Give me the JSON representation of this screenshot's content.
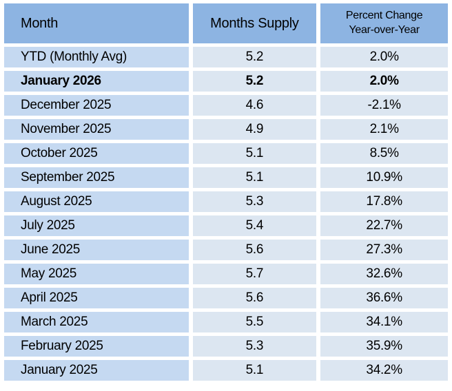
{
  "colors": {
    "header_bg": "#8DB4E2",
    "month_col_bg": "#C5D9F1",
    "value_col_bg": "#DCE6F1",
    "text": "#000000",
    "background": "#FFFFFF"
  },
  "table": {
    "headers": {
      "month": "Month",
      "supply": "Months Supply",
      "change_line1": "Percent Change",
      "change_line2": "Year-over-Year"
    },
    "rows": [
      {
        "month": "YTD (Monthly Avg)",
        "supply": "5.2",
        "change": "2.0%",
        "bold": false
      },
      {
        "month": "January 2026",
        "supply": "5.2",
        "change": "2.0%",
        "bold": true
      },
      {
        "month": "December 2025",
        "supply": "4.6",
        "change": "-2.1%",
        "bold": false
      },
      {
        "month": "November 2025",
        "supply": "4.9",
        "change": "2.1%",
        "bold": false
      },
      {
        "month": "October 2025",
        "supply": "5.1",
        "change": "8.5%",
        "bold": false
      },
      {
        "month": "September 2025",
        "supply": "5.1",
        "change": "10.9%",
        "bold": false
      },
      {
        "month": "August 2025",
        "supply": "5.3",
        "change": "17.8%",
        "bold": false
      },
      {
        "month": "July 2025",
        "supply": "5.4",
        "change": "22.7%",
        "bold": false
      },
      {
        "month": "June 2025",
        "supply": "5.6",
        "change": "27.3%",
        "bold": false
      },
      {
        "month": "May 2025",
        "supply": "5.7",
        "change": "32.6%",
        "bold": false
      },
      {
        "month": "April 2025",
        "supply": "5.6",
        "change": "36.6%",
        "bold": false
      },
      {
        "month": "March 2025",
        "supply": "5.5",
        "change": "34.1%",
        "bold": false
      },
      {
        "month": "February 2025",
        "supply": "5.3",
        "change": "35.9%",
        "bold": false
      },
      {
        "month": "January 2025",
        "supply": "5.1",
        "change": "34.2%",
        "bold": false
      }
    ]
  },
  "chart_data": {
    "type": "table",
    "categories": [
      "YTD (Monthly Avg)",
      "January 2026",
      "December 2025",
      "November 2025",
      "October 2025",
      "September 2025",
      "August 2025",
      "July 2025",
      "June 2025",
      "May 2025",
      "April 2025",
      "March 2025",
      "February 2025",
      "January 2025"
    ],
    "series": [
      {
        "name": "Months Supply",
        "values": [
          5.2,
          5.2,
          4.6,
          4.9,
          5.1,
          5.1,
          5.3,
          5.4,
          5.6,
          5.7,
          5.6,
          5.5,
          5.3,
          5.1
        ]
      },
      {
        "name": "Percent Change Year-over-Year",
        "values": [
          2.0,
          2.0,
          -2.1,
          2.1,
          8.5,
          10.9,
          17.8,
          22.7,
          27.3,
          32.6,
          36.6,
          34.1,
          35.9,
          34.2
        ]
      }
    ],
    "column_headers": [
      "Month",
      "Months Supply",
      "Percent Change Year-over-Year"
    ],
    "highlighted_row": "January 2026"
  }
}
